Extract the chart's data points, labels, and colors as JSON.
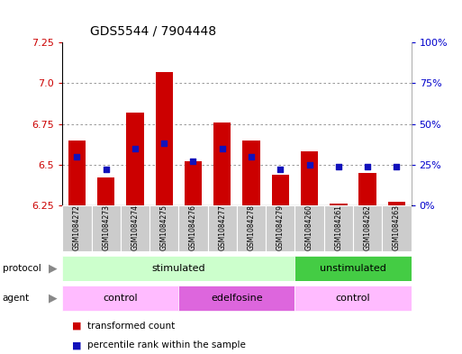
{
  "title": "GDS5544 / 7904448",
  "samples": [
    "GSM1084272",
    "GSM1084273",
    "GSM1084274",
    "GSM1084275",
    "GSM1084276",
    "GSM1084277",
    "GSM1084278",
    "GSM1084279",
    "GSM1084260",
    "GSM1084261",
    "GSM1084262",
    "GSM1084263"
  ],
  "transformed_counts": [
    6.65,
    6.42,
    6.82,
    7.07,
    6.52,
    6.76,
    6.65,
    6.44,
    6.58,
    6.26,
    6.45,
    6.27
  ],
  "percentile_ranks": [
    30,
    22,
    35,
    38,
    27,
    35,
    30,
    22,
    25,
    24,
    24,
    24
  ],
  "y_min": 6.25,
  "y_max": 7.25,
  "y_ticks": [
    6.25,
    6.5,
    6.75,
    7.0,
    7.25
  ],
  "y2_ticks": [
    0,
    25,
    50,
    75,
    100
  ],
  "y2_tick_labels": [
    "0%",
    "25%",
    "50%",
    "75%",
    "100%"
  ],
  "bar_color": "#cc0000",
  "dot_color": "#1111bb",
  "bar_width": 0.6,
  "protocol_groups": [
    {
      "text": "stimulated",
      "start": 0,
      "end": 7,
      "color": "#ccffcc"
    },
    {
      "text": "unstimulated",
      "start": 8,
      "end": 11,
      "color": "#44cc44"
    }
  ],
  "agent_groups": [
    {
      "text": "control",
      "start": 0,
      "end": 3,
      "color": "#ffbbff"
    },
    {
      "text": "edelfosine",
      "start": 4,
      "end": 7,
      "color": "#dd66dd"
    },
    {
      "text": "control",
      "start": 8,
      "end": 11,
      "color": "#ffbbff"
    }
  ],
  "legend_red": "transformed count",
  "legend_blue": "percentile rank within the sample",
  "grid_color": "#888888",
  "label_bg": "#cccccc",
  "tick_color_left": "#cc0000",
  "tick_color_right": "#0000cc",
  "bg_color": "#ffffff"
}
